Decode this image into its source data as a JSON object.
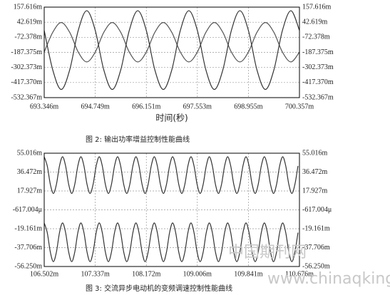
{
  "chart_data": [
    {
      "type": "line",
      "caption": "图 2: 输出功率增益控制性能曲线",
      "xlabel": "时间(秒)",
      "grid": true,
      "xlim": [
        693.346,
        700.357
      ],
      "xticks": [
        {
          "value": 693.346,
          "label": "693.346m"
        },
        {
          "value": 694.749,
          "label": "694.749m"
        },
        {
          "value": 696.151,
          "label": "696.151m"
        },
        {
          "value": 697.553,
          "label": "697.553m"
        },
        {
          "value": 698.955,
          "label": "698.955m"
        },
        {
          "value": 700.357,
          "label": "700.357m"
        }
      ],
      "ylim": [
        -532.367,
        157.616
      ],
      "yticks": [
        {
          "value": 157.616,
          "label": "157.616m"
        },
        {
          "value": 42.619,
          "label": "42.619m"
        },
        {
          "value": -72.378,
          "label": "-72.378m"
        },
        {
          "value": -187.375,
          "label": "-187.375m"
        },
        {
          "value": -302.373,
          "label": "-302.373m"
        },
        {
          "value": -417.37,
          "label": "-417.370m"
        },
        {
          "value": -532.367,
          "label": "-532.367m"
        }
      ],
      "x": [
        693.346,
        693.5797,
        693.8134,
        694.0471,
        694.2808,
        694.5145,
        694.7482,
        694.9819,
        695.2156,
        695.4493,
        695.683,
        695.9167,
        696.1504,
        696.3841,
        696.6178,
        696.8515,
        697.0852,
        697.3189,
        697.5526,
        697.7863,
        698.02,
        698.2537,
        698.4874,
        698.7211,
        698.9548,
        699.1885,
        699.4222,
        699.6559,
        699.8896,
        700.1233,
        700.357
      ],
      "series": [
        {
          "color": "#333333",
          "values": [
            -20,
            -320,
            -470,
            -320,
            -20,
            130,
            -20,
            -320,
            -470,
            -320,
            -20,
            130,
            -20,
            -320,
            -470,
            -320,
            -20,
            130,
            -20,
            -320,
            -470,
            -320,
            -20,
            130,
            -20,
            -320,
            -470,
            -320,
            -20,
            130,
            -20
          ]
        },
        {
          "color": "#555555",
          "values": [
            -185,
            -35,
            40,
            -35,
            -185,
            -260,
            -185,
            -35,
            40,
            -35,
            -185,
            -260,
            -185,
            -35,
            40,
            -35,
            -185,
            -260,
            -185,
            -35,
            40,
            -35,
            -185,
            -260,
            -185,
            -35,
            40,
            -35,
            -185,
            -260,
            -185
          ]
        }
      ]
    },
    {
      "type": "line",
      "caption": "图 3: 交流异步电动机的变频调速控制性能曲线",
      "grid": true,
      "xlim": [
        106.502,
        110.676
      ],
      "xticks": [
        {
          "value": 106.502,
          "label": "106.502m"
        },
        {
          "value": 107.337,
          "label": "107.337m"
        },
        {
          "value": 108.172,
          "label": "108.172m"
        },
        {
          "value": 109.006,
          "label": "109.006m"
        },
        {
          "value": 109.841,
          "label": "109.841m"
        },
        {
          "value": 110.676,
          "label": "110.676m"
        }
      ],
      "ylim": [
        -56.25,
        55.016
      ],
      "yticks": [
        {
          "value": 55.016,
          "label": "55.016m"
        },
        {
          "value": 36.472,
          "label": "36.472m"
        },
        {
          "value": 17.927,
          "label": "17.927m"
        },
        {
          "value": -0.617004,
          "label": "-617.004μ"
        },
        {
          "value": -19.161,
          "label": "-19.161m"
        },
        {
          "value": -37.706,
          "label": "-37.706m"
        },
        {
          "value": -56.25,
          "label": "-56.250m"
        }
      ],
      "x": [
        106.502,
        106.552,
        106.602,
        106.652,
        106.702,
        106.752,
        106.802,
        106.852,
        106.902,
        106.952,
        107.002,
        107.052,
        107.102,
        107.152,
        107.202,
        107.252,
        107.302,
        107.352,
        107.402,
        107.452,
        107.502,
        107.552,
        107.602,
        107.652,
        107.702,
        107.752,
        107.802,
        107.852,
        107.902,
        107.952,
        108.002,
        108.052,
        108.102,
        108.152,
        108.202,
        108.252,
        108.302,
        108.352,
        108.402,
        108.452,
        108.502,
        108.552,
        108.602,
        108.652,
        108.702,
        108.752,
        108.802,
        108.852,
        108.902,
        108.952,
        109.002,
        109.052,
        109.102,
        109.152,
        109.202,
        109.252,
        109.302,
        109.352,
        109.402,
        109.452,
        109.502,
        109.552,
        109.602,
        109.652,
        109.702,
        109.752,
        109.802,
        109.852,
        109.902,
        109.952,
        110.002,
        110.052,
        110.102,
        110.152,
        110.202,
        110.252,
        110.302,
        110.352,
        110.402,
        110.452,
        110.502,
        110.552,
        110.602,
        110.652
      ],
      "series": [
        {
          "color": "#333333",
          "values": [
            51.5,
            42.5,
            24.5,
            15.5,
            24.5,
            42.5,
            51.5,
            42.5,
            24.5,
            15.5,
            24.5,
            42.5,
            51.5,
            42.5,
            24.5,
            15.5,
            24.5,
            42.5,
            51.5,
            42.5,
            24.5,
            15.5,
            24.5,
            42.5,
            51.5,
            42.5,
            24.5,
            15.5,
            24.5,
            42.5,
            51.5,
            42.5,
            24.5,
            15.5,
            24.5,
            42.5,
            51.5,
            42.5,
            24.5,
            15.5,
            24.5,
            42.5,
            51.5,
            42.5,
            24.5,
            15.5,
            24.5,
            42.5,
            51.5,
            42.5,
            24.5,
            15.5,
            24.5,
            42.5,
            51.5,
            42.5,
            24.5,
            15.5,
            24.5,
            42.5,
            51.5,
            42.5,
            24.5,
            15.5,
            24.5,
            42.5,
            51.5,
            42.5,
            24.5,
            15.5,
            24.5,
            42.5,
            51.5,
            42.5,
            24.5,
            15.5,
            24.5,
            42.5,
            51.5,
            42.5,
            24.5,
            15.5,
            24.5,
            42.5
          ]
        },
        {
          "color": "#333333",
          "values": [
            -13.5,
            -23,
            -42,
            -51.5,
            -42,
            -23,
            -13.5,
            -23,
            -42,
            -51.5,
            -42,
            -23,
            -13.5,
            -23,
            -42,
            -51.5,
            -42,
            -23,
            -13.5,
            -23,
            -42,
            -51.5,
            -42,
            -23,
            -13.5,
            -23,
            -42,
            -51.5,
            -42,
            -23,
            -13.5,
            -23,
            -42,
            -51.5,
            -42,
            -23,
            -13.5,
            -23,
            -42,
            -51.5,
            -42,
            -23,
            -13.5,
            -23,
            -42,
            -51.5,
            -42,
            -23,
            -13.5,
            -23,
            -42,
            -51.5,
            -42,
            -23,
            -13.5,
            -23,
            -42,
            -51.5,
            -42,
            -23,
            -13.5,
            -23,
            -42,
            -51.5,
            -42,
            -23,
            -13.5,
            -23,
            -42,
            -51.5,
            -42,
            -23,
            -13.5,
            -23,
            -42,
            -51.5,
            -42,
            -23,
            -13.5,
            -23,
            -42,
            -51.5,
            -42,
            -23
          ]
        }
      ]
    }
  ],
  "watermark": {
    "site": "中国期刊网",
    "url": "www.chinaqking.com"
  }
}
